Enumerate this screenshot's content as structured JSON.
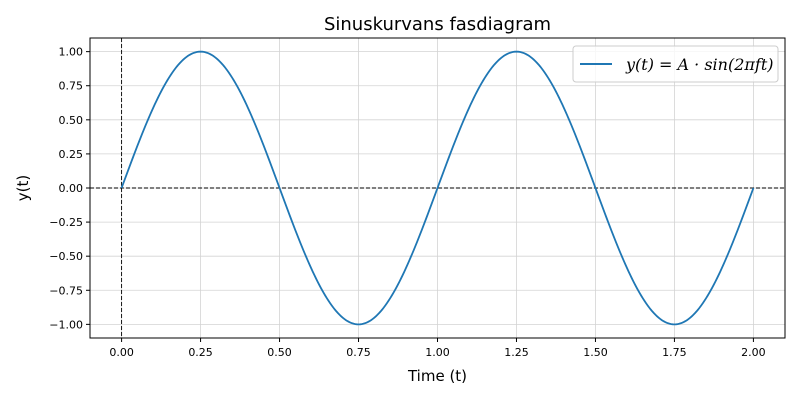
{
  "chart_data": {
    "type": "line",
    "title": "Sinuskurvans fasdiagram",
    "xlabel": "Time (t)",
    "ylabel": "y(t)",
    "xlim": [
      -0.1,
      2.1
    ],
    "ylim": [
      -1.1,
      1.1
    ],
    "xticks": [
      0.0,
      0.25,
      0.5,
      0.75,
      1.0,
      1.25,
      1.5,
      1.75,
      2.0
    ],
    "xtick_labels": [
      "0.00",
      "0.25",
      "0.50",
      "0.75",
      "1.00",
      "1.25",
      "1.50",
      "1.75",
      "2.00"
    ],
    "yticks": [
      -1.0,
      -0.75,
      -0.5,
      -0.25,
      0.0,
      0.25,
      0.5,
      0.75,
      1.0
    ],
    "ytick_labels": [
      "−1.00",
      "−0.75",
      "−0.50",
      "−0.25",
      "0.00",
      "0.25",
      "0.50",
      "0.75",
      "1.00"
    ],
    "grid": true,
    "legend_position": "top-right",
    "reference_lines": [
      {
        "orientation": "horizontal",
        "value": 0.0,
        "style": "dashed",
        "color": "#000000"
      },
      {
        "orientation": "vertical",
        "value": 0.0,
        "style": "dashed",
        "color": "#000000"
      }
    ],
    "series": [
      {
        "name": "y(t) = A · sin(2πft)",
        "color": "#1f77b4",
        "amplitude": 1.0,
        "frequency": 1.0,
        "x_start": 0.0,
        "x_end": 2.0
      }
    ]
  }
}
